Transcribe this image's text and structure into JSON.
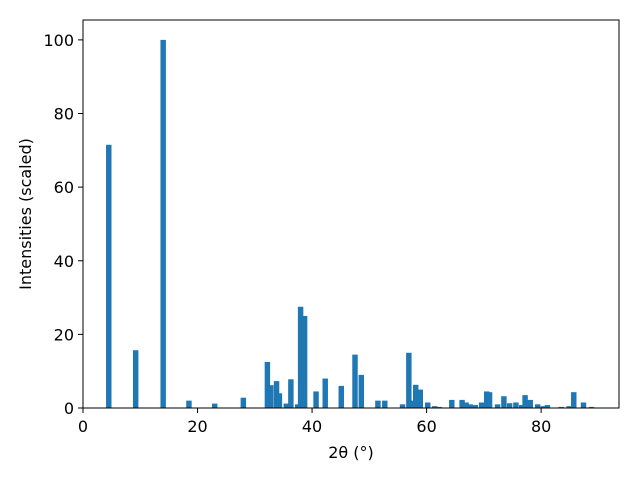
{
  "chart_data": {
    "type": "bar",
    "xlabel": "2θ (°)",
    "ylabel": "Intensities (scaled)",
    "x": [
      4.5,
      9.2,
      14,
      18.5,
      23,
      28,
      32.2,
      32.8,
      33.8,
      34.3,
      35.5,
      36.3,
      37.5,
      38,
      38.7,
      40.7,
      42.3,
      45.1,
      47.5,
      48.6,
      51.5,
      52.7,
      55.8,
      56.9,
      57.4,
      58.1,
      58.9,
      60.2,
      61.4,
      62.2,
      64.4,
      66.2,
      66.9,
      67.6,
      68.5,
      69.6,
      70.5,
      71,
      72.4,
      73.5,
      74.5,
      75.6,
      76.6,
      77.2,
      78.1,
      79.4,
      80.4,
      81.1,
      83.5,
      84.9,
      85.7,
      87.4,
      88.8
    ],
    "values": [
      71.5,
      15.7,
      100,
      2,
      1.2,
      2.8,
      12.5,
      6.2,
      7.3,
      4,
      1.2,
      7.8,
      1,
      27.5,
      25,
      4.5,
      8,
      6,
      14.5,
      9,
      2,
      2,
      1,
      15,
      2,
      6.3,
      5,
      1.5,
      0.5,
      0.3,
      2.2,
      2.2,
      1.5,
      1,
      0.8,
      1.5,
      4.5,
      4.3,
      1,
      3.2,
      1.3,
      1.5,
      0.8,
      3.5,
      2.2,
      1,
      0.5,
      0.8,
      0.3,
      0.5,
      4.3,
      1.5,
      0.3
    ],
    "color": "#1f77b4",
    "xlim": [
      0,
      93.6
    ],
    "xticks": [
      0,
      20,
      40,
      60,
      80
    ],
    "ylim": [
      0,
      105.4
    ],
    "yticks": [
      0,
      20,
      40,
      60,
      80,
      100
    ]
  }
}
